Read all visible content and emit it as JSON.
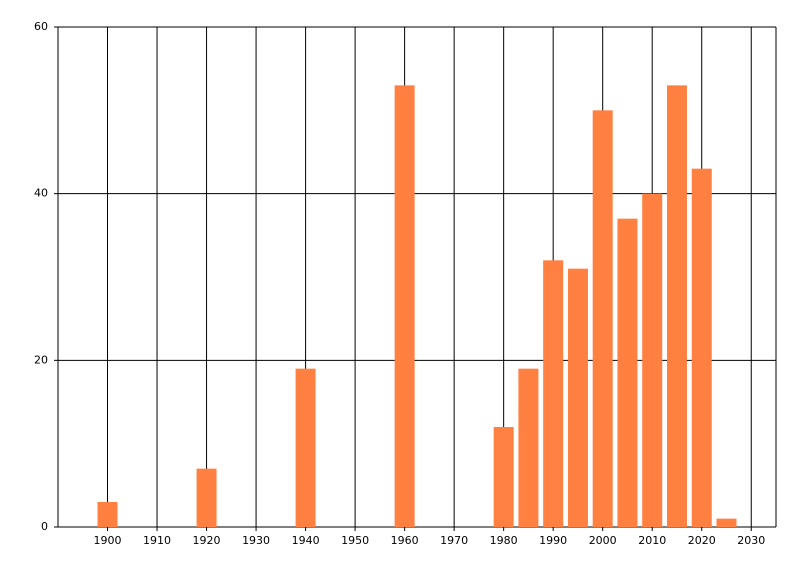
{
  "chart_data": {
    "type": "bar",
    "x": [
      1900,
      1920,
      1940,
      1960,
      1980,
      1985,
      1990,
      1995,
      2000,
      2005,
      2010,
      2015,
      2020,
      2025
    ],
    "values": [
      3,
      7,
      19,
      53,
      12,
      19,
      32,
      31,
      50,
      37,
      40,
      53,
      43,
      1
    ],
    "color": "#ff8040",
    "xlim": [
      1890,
      2035
    ],
    "xticks": [
      1900,
      1910,
      1920,
      1930,
      1940,
      1950,
      1960,
      1970,
      1980,
      1990,
      2000,
      2010,
      2020,
      2030
    ],
    "ylim": [
      0,
      60
    ],
    "yticks": [
      0,
      20,
      40,
      60
    ],
    "grid": true
  }
}
